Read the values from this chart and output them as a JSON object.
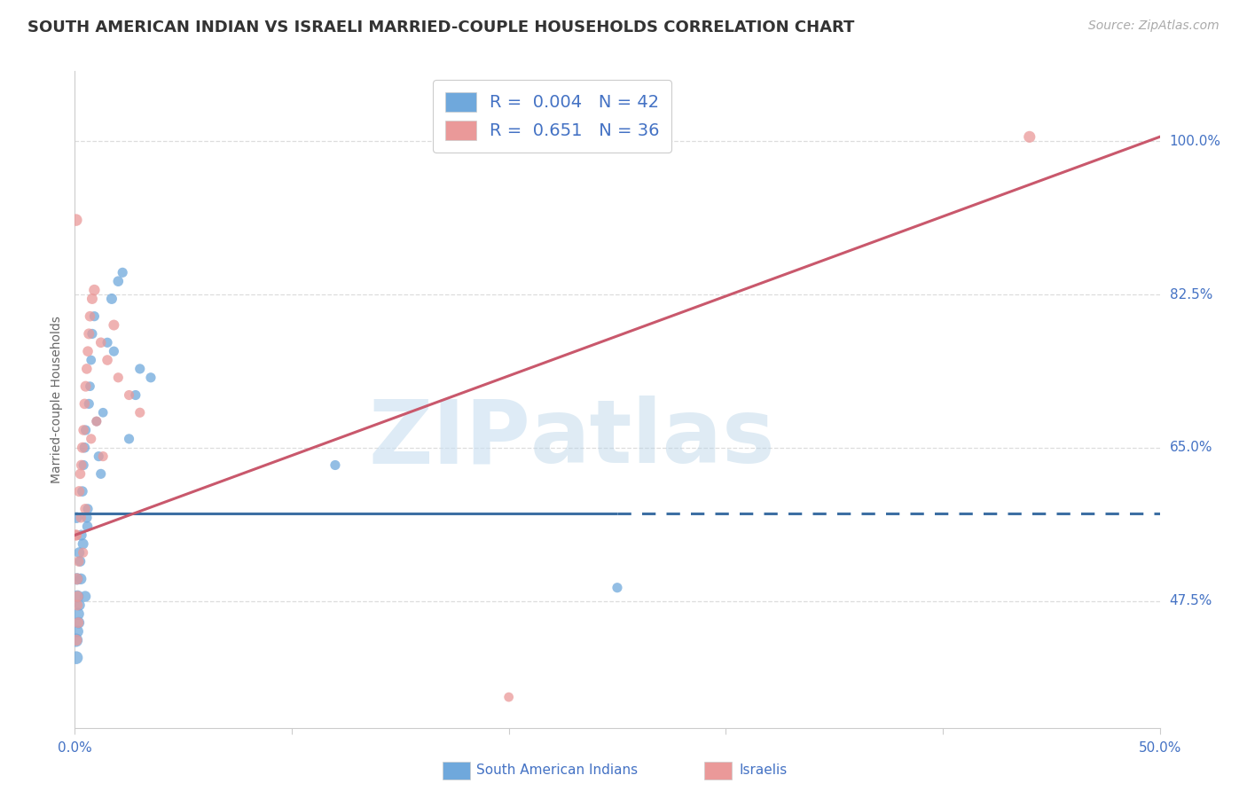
{
  "title": "SOUTH AMERICAN INDIAN VS ISRAELI MARRIED-COUPLE HOUSEHOLDS CORRELATION CHART",
  "source": "Source: ZipAtlas.com",
  "ylabel": "Married-couple Households",
  "xlim": [
    0.0,
    50.0
  ],
  "ylim": [
    33.0,
    108.0
  ],
  "yticks": [
    47.5,
    65.0,
    82.5,
    100.0
  ],
  "ytick_labels": [
    "47.5%",
    "65.0%",
    "82.5%",
    "100.0%"
  ],
  "xtick_positions": [
    0.0,
    10.0,
    20.0,
    30.0,
    40.0,
    50.0
  ],
  "blue_R": 0.004,
  "blue_N": 42,
  "pink_R": 0.651,
  "pink_N": 36,
  "blue_color": "#6fa8dc",
  "pink_color": "#ea9999",
  "blue_line_color": "#3d6fa3",
  "pink_line_color": "#c9586c",
  "watermark_zip": "ZIP",
  "watermark_atlas": "atlas",
  "title_color": "#333333",
  "axis_color": "#4472c4",
  "grid_color": "#dddddd",
  "background_color": "#ffffff",
  "title_fontsize": 13,
  "label_fontsize": 10,
  "tick_fontsize": 11,
  "source_fontsize": 10,
  "legend_fontsize": 14,
  "blue_scatter_x": [
    0.08,
    0.1,
    0.12,
    0.15,
    0.18,
    0.2,
    0.25,
    0.3,
    0.35,
    0.4,
    0.45,
    0.5,
    0.55,
    0.6,
    0.65,
    0.7,
    0.75,
    0.8,
    0.9,
    1.0,
    1.1,
    1.2,
    1.3,
    1.5,
    1.7,
    2.0,
    2.2,
    2.5,
    3.0,
    3.5,
    0.05,
    0.07,
    0.13,
    0.22,
    0.28,
    0.38,
    0.48,
    0.58,
    1.8,
    2.8,
    12.0,
    25.0
  ],
  "blue_scatter_y": [
    57.0,
    50.0,
    48.0,
    46.0,
    45.0,
    53.0,
    52.0,
    55.0,
    60.0,
    63.0,
    65.0,
    67.0,
    57.0,
    58.0,
    70.0,
    72.0,
    75.0,
    78.0,
    80.0,
    68.0,
    64.0,
    62.0,
    69.0,
    77.0,
    82.0,
    84.0,
    85.0,
    66.0,
    74.0,
    73.0,
    43.0,
    41.0,
    44.0,
    47.0,
    50.0,
    54.0,
    48.0,
    56.0,
    76.0,
    71.0,
    63.0,
    49.0
  ],
  "pink_scatter_x": [
    0.07,
    0.1,
    0.13,
    0.16,
    0.2,
    0.25,
    0.3,
    0.35,
    0.4,
    0.45,
    0.5,
    0.55,
    0.6,
    0.65,
    0.7,
    0.8,
    0.9,
    1.0,
    1.2,
    1.5,
    1.8,
    2.0,
    2.5,
    3.0,
    0.08,
    0.12,
    0.18,
    0.28,
    0.38,
    0.48,
    0.75,
    1.3,
    20.0,
    44.0,
    0.05,
    0.06
  ],
  "pink_scatter_y": [
    55.0,
    50.0,
    48.0,
    45.0,
    60.0,
    62.0,
    63.0,
    65.0,
    67.0,
    70.0,
    72.0,
    74.0,
    76.0,
    78.0,
    80.0,
    82.0,
    83.0,
    68.0,
    77.0,
    75.0,
    79.0,
    73.0,
    71.0,
    69.0,
    43.0,
    47.0,
    52.0,
    57.0,
    53.0,
    58.0,
    66.0,
    64.0,
    36.5,
    100.5,
    55.0,
    91.0
  ],
  "blue_marker_sizes": [
    80,
    90,
    100,
    95,
    85,
    75,
    70,
    75,
    70,
    65,
    70,
    65,
    70,
    65,
    65,
    60,
    60,
    65,
    65,
    60,
    65,
    65,
    60,
    65,
    75,
    70,
    65,
    65,
    65,
    65,
    120,
    110,
    85,
    75,
    80,
    75,
    80,
    70,
    65,
    65,
    65,
    65
  ],
  "pink_marker_sizes": [
    75,
    85,
    80,
    75,
    75,
    70,
    70,
    75,
    70,
    70,
    75,
    70,
    70,
    75,
    70,
    75,
    80,
    65,
    70,
    70,
    75,
    65,
    65,
    65,
    80,
    75,
    70,
    70,
    65,
    70,
    65,
    65,
    60,
    90,
    75,
    95
  ],
  "blue_line_y": 57.5,
  "blue_solid_end_x": 25.0,
  "pink_line_x0": 0.0,
  "pink_line_y0": 55.0,
  "pink_line_x1": 50.0,
  "pink_line_y1": 100.5
}
